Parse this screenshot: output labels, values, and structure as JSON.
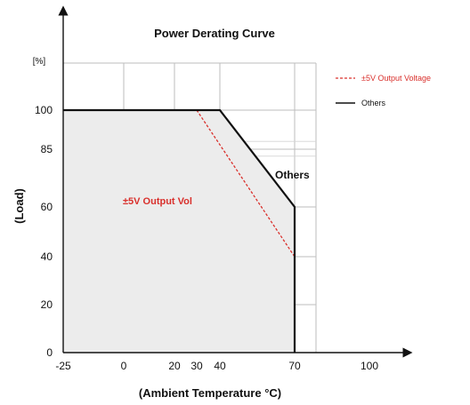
{
  "chart_data": {
    "type": "line",
    "title": "Power Derating Curve",
    "xlabel": "(Ambient Temperature °C)",
    "ylabel": "(Load)",
    "y_unit": "[%]",
    "x_ticks": [
      "-25",
      "0",
      "20",
      "30",
      "40",
      "70",
      "100"
    ],
    "y_ticks": [
      "0",
      "20",
      "40",
      "60",
      "85",
      "100"
    ],
    "xlim": [
      -25,
      100
    ],
    "ylim": [
      0,
      100
    ],
    "grid": true,
    "legend_position": "top-right",
    "series": [
      {
        "name": "±5V Output Voltage",
        "color": "#d9302c",
        "style": "dashed",
        "x": [
          -25,
          30,
          70
        ],
        "y": [
          100,
          100,
          40
        ]
      },
      {
        "name": "Others",
        "color": "#111111",
        "style": "solid",
        "x": [
          -25,
          40,
          70,
          70
        ],
        "y": [
          100,
          100,
          60,
          0
        ]
      }
    ],
    "annotations": [
      "Others",
      "±5V Output Vol"
    ]
  }
}
